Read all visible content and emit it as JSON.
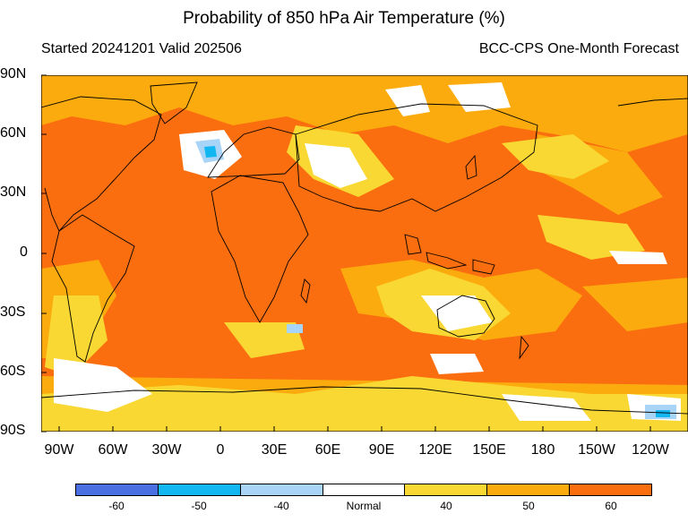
{
  "title": "Probability of 850 hPa Air Temperature (%)",
  "subtitle_left": "Started 20241201  Valid 202506",
  "subtitle_right": "BCC-CPS One-Month Forecast",
  "lat_labels": [
    "90N",
    "60N",
    "30N",
    "0",
    "30S",
    "60S",
    "90S"
  ],
  "lon_labels": [
    "90W",
    "60W",
    "30W",
    "0",
    "30E",
    "60E",
    "90E",
    "120E",
    "150E",
    "180",
    "150W",
    "120W"
  ],
  "legend": {
    "labels": [
      "-60",
      "-50",
      "-40",
      "Normal",
      "40",
      "50",
      "60"
    ],
    "colors": [
      "#4a6fe3",
      "#12b6f0",
      "#a8d4f7",
      "#ffffff",
      "#f9d833",
      "#fbab0e",
      "#fb6e10"
    ]
  },
  "colors": {
    "background_warm": "#fb6e10",
    "mid_warm": "#fbab0e",
    "low_warm": "#f9d833",
    "normal": "#ffffff",
    "cool": "#a8d4f7",
    "cooler": "#12b6f0"
  }
}
